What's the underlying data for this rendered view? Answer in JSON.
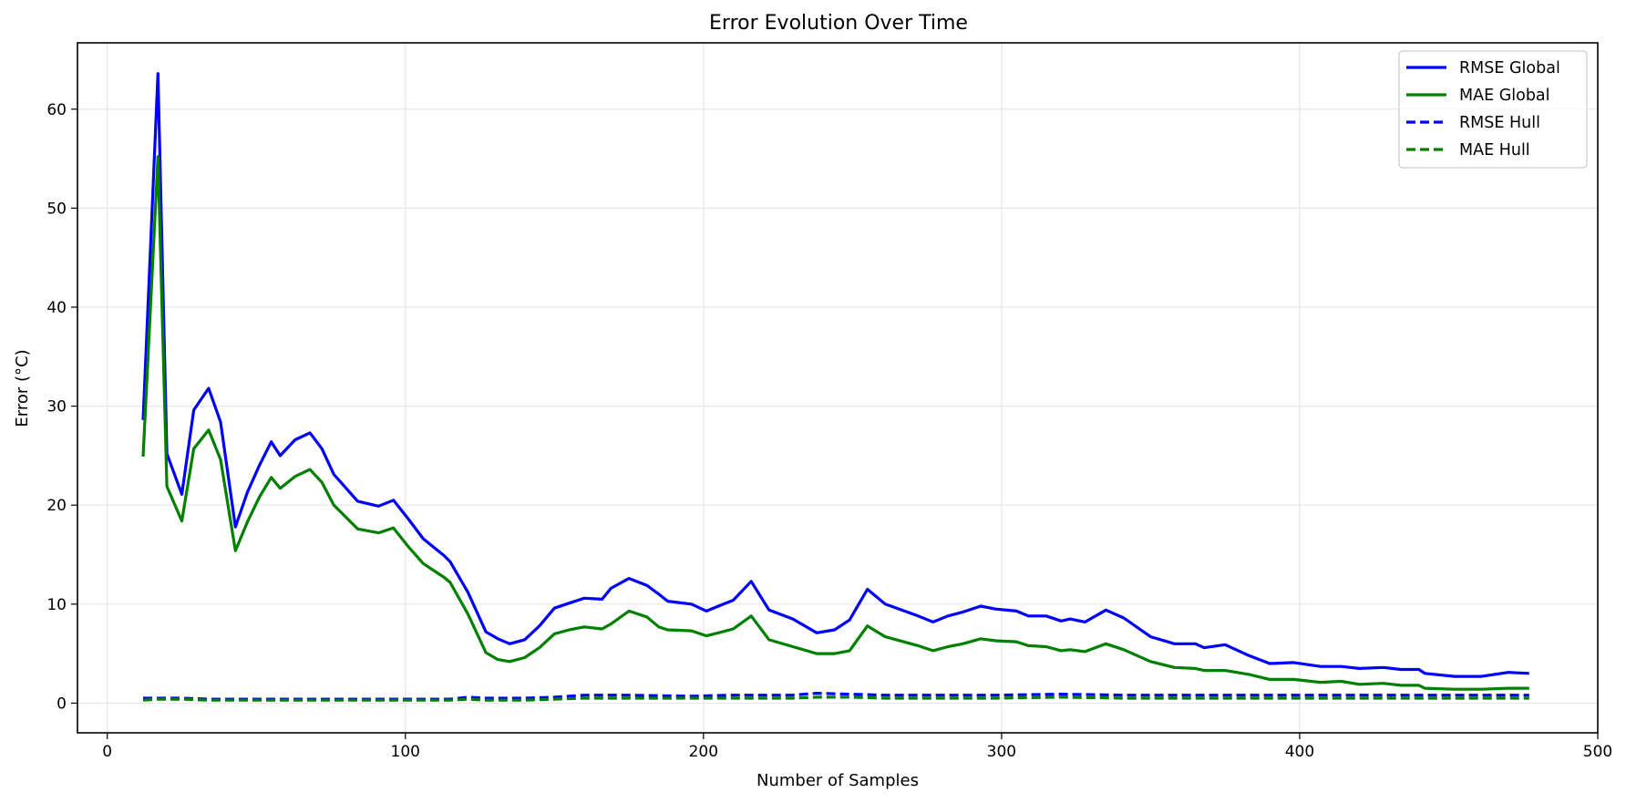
{
  "chart_data": {
    "type": "line",
    "title": "Error Evolution Over Time",
    "xlabel": "Number of Samples",
    "ylabel": "Error (°C)",
    "xlim": [
      -10,
      500
    ],
    "ylim": [
      -3,
      66.7
    ],
    "xticks": [
      0,
      100,
      200,
      300,
      400,
      500
    ],
    "yticks": [
      0,
      10,
      20,
      30,
      40,
      50,
      60
    ],
    "grid": true,
    "legend_position": "top-right",
    "series": [
      {
        "name": "RMSE Global",
        "color": "#0000ff",
        "style": "solid",
        "points": [
          [
            12,
            28.6
          ],
          [
            17,
            63.6
          ],
          [
            20,
            25.2
          ],
          [
            25,
            21.1
          ],
          [
            29,
            29.6
          ],
          [
            34,
            31.8
          ],
          [
            38,
            28.4
          ],
          [
            43,
            17.8
          ],
          [
            47,
            21.3
          ],
          [
            51,
            24.0
          ],
          [
            55,
            26.4
          ],
          [
            58,
            25.0
          ],
          [
            63,
            26.6
          ],
          [
            68,
            27.3
          ],
          [
            72,
            25.7
          ],
          [
            76,
            23.1
          ],
          [
            84,
            20.4
          ],
          [
            91,
            19.9
          ],
          [
            96,
            20.5
          ],
          [
            101,
            18.6
          ],
          [
            106,
            16.6
          ],
          [
            113,
            14.9
          ],
          [
            115,
            14.3
          ],
          [
            121,
            11.2
          ],
          [
            127,
            7.2
          ],
          [
            131,
            6.5
          ],
          [
            135,
            6.0
          ],
          [
            140,
            6.4
          ],
          [
            145,
            7.8
          ],
          [
            150,
            9.6
          ],
          [
            155,
            10.1
          ],
          [
            160,
            10.6
          ],
          [
            166,
            10.5
          ],
          [
            169,
            11.6
          ],
          [
            175,
            12.6
          ],
          [
            181,
            11.9
          ],
          [
            185,
            11.0
          ],
          [
            188,
            10.3
          ],
          [
            196,
            10.0
          ],
          [
            201,
            9.3
          ],
          [
            205,
            9.8
          ],
          [
            210,
            10.4
          ],
          [
            216,
            12.3
          ],
          [
            222,
            9.4
          ],
          [
            230,
            8.5
          ],
          [
            238,
            7.1
          ],
          [
            244,
            7.4
          ],
          [
            249,
            8.4
          ],
          [
            255,
            11.5
          ],
          [
            261,
            10.0
          ],
          [
            272,
            8.8
          ],
          [
            277,
            8.2
          ],
          [
            282,
            8.8
          ],
          [
            287,
            9.2
          ],
          [
            293,
            9.8
          ],
          [
            298,
            9.5
          ],
          [
            305,
            9.3
          ],
          [
            309,
            8.8
          ],
          [
            315,
            8.8
          ],
          [
            320,
            8.3
          ],
          [
            323,
            8.5
          ],
          [
            328,
            8.2
          ],
          [
            335,
            9.4
          ],
          [
            341,
            8.6
          ],
          [
            350,
            6.7
          ],
          [
            358,
            6.0
          ],
          [
            365,
            6.0
          ],
          [
            368,
            5.6
          ],
          [
            375,
            5.9
          ],
          [
            383,
            4.8
          ],
          [
            390,
            4.0
          ],
          [
            398,
            4.1
          ],
          [
            407,
            3.7
          ],
          [
            414,
            3.7
          ],
          [
            420,
            3.5
          ],
          [
            428,
            3.6
          ],
          [
            434,
            3.4
          ],
          [
            440,
            3.4
          ],
          [
            442,
            3.0
          ],
          [
            452,
            2.7
          ],
          [
            461,
            2.7
          ],
          [
            470,
            3.1
          ],
          [
            477,
            3.0
          ]
        ]
      },
      {
        "name": "MAE Global",
        "color": "#008000",
        "style": "solid",
        "points": [
          [
            12,
            24.9
          ],
          [
            17,
            55.2
          ],
          [
            20,
            21.9
          ],
          [
            25,
            18.4
          ],
          [
            29,
            25.7
          ],
          [
            34,
            27.6
          ],
          [
            38,
            24.6
          ],
          [
            43,
            15.4
          ],
          [
            47,
            18.3
          ],
          [
            51,
            20.8
          ],
          [
            55,
            22.8
          ],
          [
            58,
            21.7
          ],
          [
            63,
            22.9
          ],
          [
            68,
            23.6
          ],
          [
            72,
            22.3
          ],
          [
            76,
            20.0
          ],
          [
            84,
            17.6
          ],
          [
            91,
            17.2
          ],
          [
            96,
            17.7
          ],
          [
            101,
            15.8
          ],
          [
            106,
            14.1
          ],
          [
            113,
            12.7
          ],
          [
            115,
            12.2
          ],
          [
            121,
            9.0
          ],
          [
            127,
            5.1
          ],
          [
            131,
            4.4
          ],
          [
            135,
            4.2
          ],
          [
            140,
            4.6
          ],
          [
            145,
            5.6
          ],
          [
            150,
            7.0
          ],
          [
            155,
            7.4
          ],
          [
            160,
            7.7
          ],
          [
            166,
            7.5
          ],
          [
            169,
            8.0
          ],
          [
            175,
            9.3
          ],
          [
            181,
            8.7
          ],
          [
            185,
            7.7
          ],
          [
            188,
            7.4
          ],
          [
            196,
            7.3
          ],
          [
            201,
            6.8
          ],
          [
            205,
            7.1
          ],
          [
            210,
            7.5
          ],
          [
            216,
            8.8
          ],
          [
            222,
            6.4
          ],
          [
            230,
            5.7
          ],
          [
            238,
            5.0
          ],
          [
            244,
            5.0
          ],
          [
            249,
            5.3
          ],
          [
            255,
            7.8
          ],
          [
            261,
            6.7
          ],
          [
            272,
            5.8
          ],
          [
            277,
            5.3
          ],
          [
            282,
            5.7
          ],
          [
            287,
            6.0
          ],
          [
            293,
            6.5
          ],
          [
            298,
            6.3
          ],
          [
            305,
            6.2
          ],
          [
            309,
            5.8
          ],
          [
            315,
            5.7
          ],
          [
            320,
            5.3
          ],
          [
            323,
            5.4
          ],
          [
            328,
            5.2
          ],
          [
            335,
            6.0
          ],
          [
            341,
            5.4
          ],
          [
            350,
            4.2
          ],
          [
            358,
            3.6
          ],
          [
            365,
            3.5
          ],
          [
            368,
            3.3
          ],
          [
            375,
            3.3
          ],
          [
            383,
            2.9
          ],
          [
            390,
            2.4
          ],
          [
            398,
            2.4
          ],
          [
            407,
            2.1
          ],
          [
            414,
            2.2
          ],
          [
            420,
            1.9
          ],
          [
            428,
            2.0
          ],
          [
            434,
            1.8
          ],
          [
            440,
            1.8
          ],
          [
            442,
            1.5
          ],
          [
            452,
            1.4
          ],
          [
            461,
            1.4
          ],
          [
            470,
            1.5
          ],
          [
            477,
            1.5
          ]
        ]
      },
      {
        "name": "RMSE Hull",
        "color": "#0000ff",
        "style": "dashed",
        "points": [
          [
            12,
            0.5
          ],
          [
            17,
            0.5
          ],
          [
            25,
            0.5
          ],
          [
            34,
            0.4
          ],
          [
            43,
            0.4
          ],
          [
            55,
            0.4
          ],
          [
            68,
            0.4
          ],
          [
            84,
            0.4
          ],
          [
            101,
            0.4
          ],
          [
            115,
            0.4
          ],
          [
            121,
            0.6
          ],
          [
            127,
            0.5
          ],
          [
            140,
            0.5
          ],
          [
            150,
            0.6
          ],
          [
            160,
            0.8
          ],
          [
            175,
            0.8
          ],
          [
            196,
            0.7
          ],
          [
            210,
            0.8
          ],
          [
            230,
            0.8
          ],
          [
            238,
            1.0
          ],
          [
            249,
            0.9
          ],
          [
            261,
            0.8
          ],
          [
            277,
            0.8
          ],
          [
            298,
            0.8
          ],
          [
            320,
            0.9
          ],
          [
            341,
            0.8
          ],
          [
            365,
            0.8
          ],
          [
            398,
            0.8
          ],
          [
            428,
            0.8
          ],
          [
            461,
            0.8
          ],
          [
            477,
            0.8
          ]
        ]
      },
      {
        "name": "MAE Hull",
        "color": "#008000",
        "style": "dashed",
        "points": [
          [
            12,
            0.3
          ],
          [
            17,
            0.4
          ],
          [
            25,
            0.4
          ],
          [
            34,
            0.3
          ],
          [
            43,
            0.3
          ],
          [
            55,
            0.3
          ],
          [
            68,
            0.3
          ],
          [
            84,
            0.3
          ],
          [
            101,
            0.3
          ],
          [
            115,
            0.3
          ],
          [
            121,
            0.4
          ],
          [
            127,
            0.3
          ],
          [
            140,
            0.3
          ],
          [
            150,
            0.4
          ],
          [
            160,
            0.5
          ],
          [
            175,
            0.5
          ],
          [
            196,
            0.5
          ],
          [
            210,
            0.5
          ],
          [
            230,
            0.5
          ],
          [
            238,
            0.6
          ],
          [
            249,
            0.6
          ],
          [
            261,
            0.5
          ],
          [
            277,
            0.5
          ],
          [
            298,
            0.5
          ],
          [
            320,
            0.6
          ],
          [
            341,
            0.5
          ],
          [
            365,
            0.5
          ],
          [
            398,
            0.5
          ],
          [
            428,
            0.5
          ],
          [
            461,
            0.5
          ],
          [
            477,
            0.5
          ]
        ]
      }
    ]
  }
}
